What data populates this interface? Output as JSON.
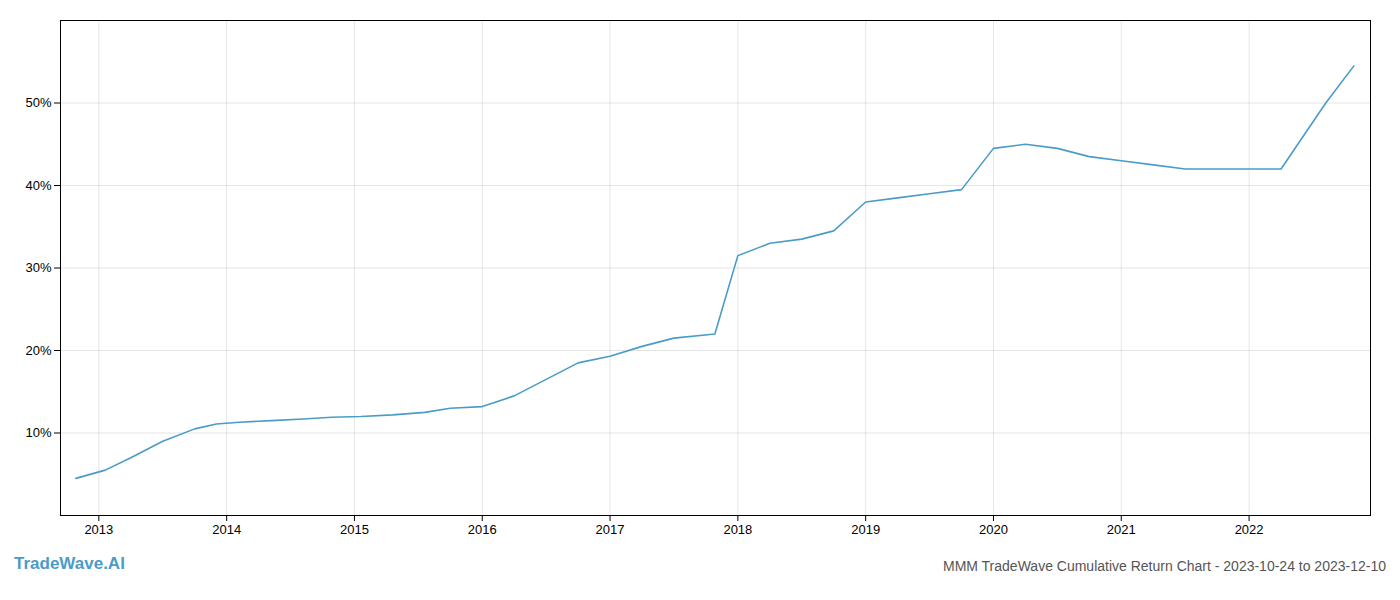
{
  "chart_data": {
    "type": "line",
    "title": "MMM TradeWave Cumulative Return Chart - 2023-10-24 to 2023-12-10",
    "annotations": [
      {
        "text": "TradeWave.AI",
        "color": "#4a9cc7"
      }
    ],
    "x": [
      2012.82,
      2013.05,
      2013.25,
      2013.5,
      2013.75,
      2013.92,
      2014.1,
      2014.35,
      2014.6,
      2014.82,
      2015.05,
      2015.3,
      2015.55,
      2015.75,
      2016.0,
      2016.25,
      2016.5,
      2016.75,
      2017.0,
      2017.25,
      2017.5,
      2017.82,
      2018.0,
      2018.25,
      2018.5,
      2018.75,
      2019.0,
      2019.25,
      2019.5,
      2019.75,
      2020.0,
      2020.25,
      2020.5,
      2020.75,
      2021.0,
      2021.25,
      2021.5,
      2021.75,
      2021.95,
      2022.0,
      2022.25,
      2022.6,
      2022.82
    ],
    "values": [
      4.5,
      5.5,
      7.0,
      9.0,
      10.5,
      11.1,
      11.3,
      11.5,
      11.7,
      11.9,
      12.0,
      12.2,
      12.5,
      13.0,
      13.2,
      14.5,
      16.5,
      18.5,
      19.3,
      20.5,
      21.5,
      22.0,
      31.5,
      33.0,
      33.5,
      34.5,
      38.0,
      38.5,
      39.0,
      39.5,
      44.5,
      45.0,
      44.5,
      43.5,
      43.0,
      42.5,
      42.0,
      42.0,
      42.0,
      42.0,
      42.0,
      50.0,
      54.5
    ],
    "color": "#4a9cc7",
    "xlim": [
      2012.7,
      2022.95
    ],
    "ylim": [
      0,
      60
    ],
    "xticks": [
      2013,
      2014,
      2015,
      2016,
      2017,
      2018,
      2019,
      2020,
      2021,
      2022
    ],
    "yticks": [
      {
        "value": 10,
        "label": "10%"
      },
      {
        "value": 20,
        "label": "20%"
      },
      {
        "value": 30,
        "label": "30%"
      },
      {
        "value": 40,
        "label": "40%"
      },
      {
        "value": 50,
        "label": "50%"
      }
    ],
    "grid": true
  }
}
